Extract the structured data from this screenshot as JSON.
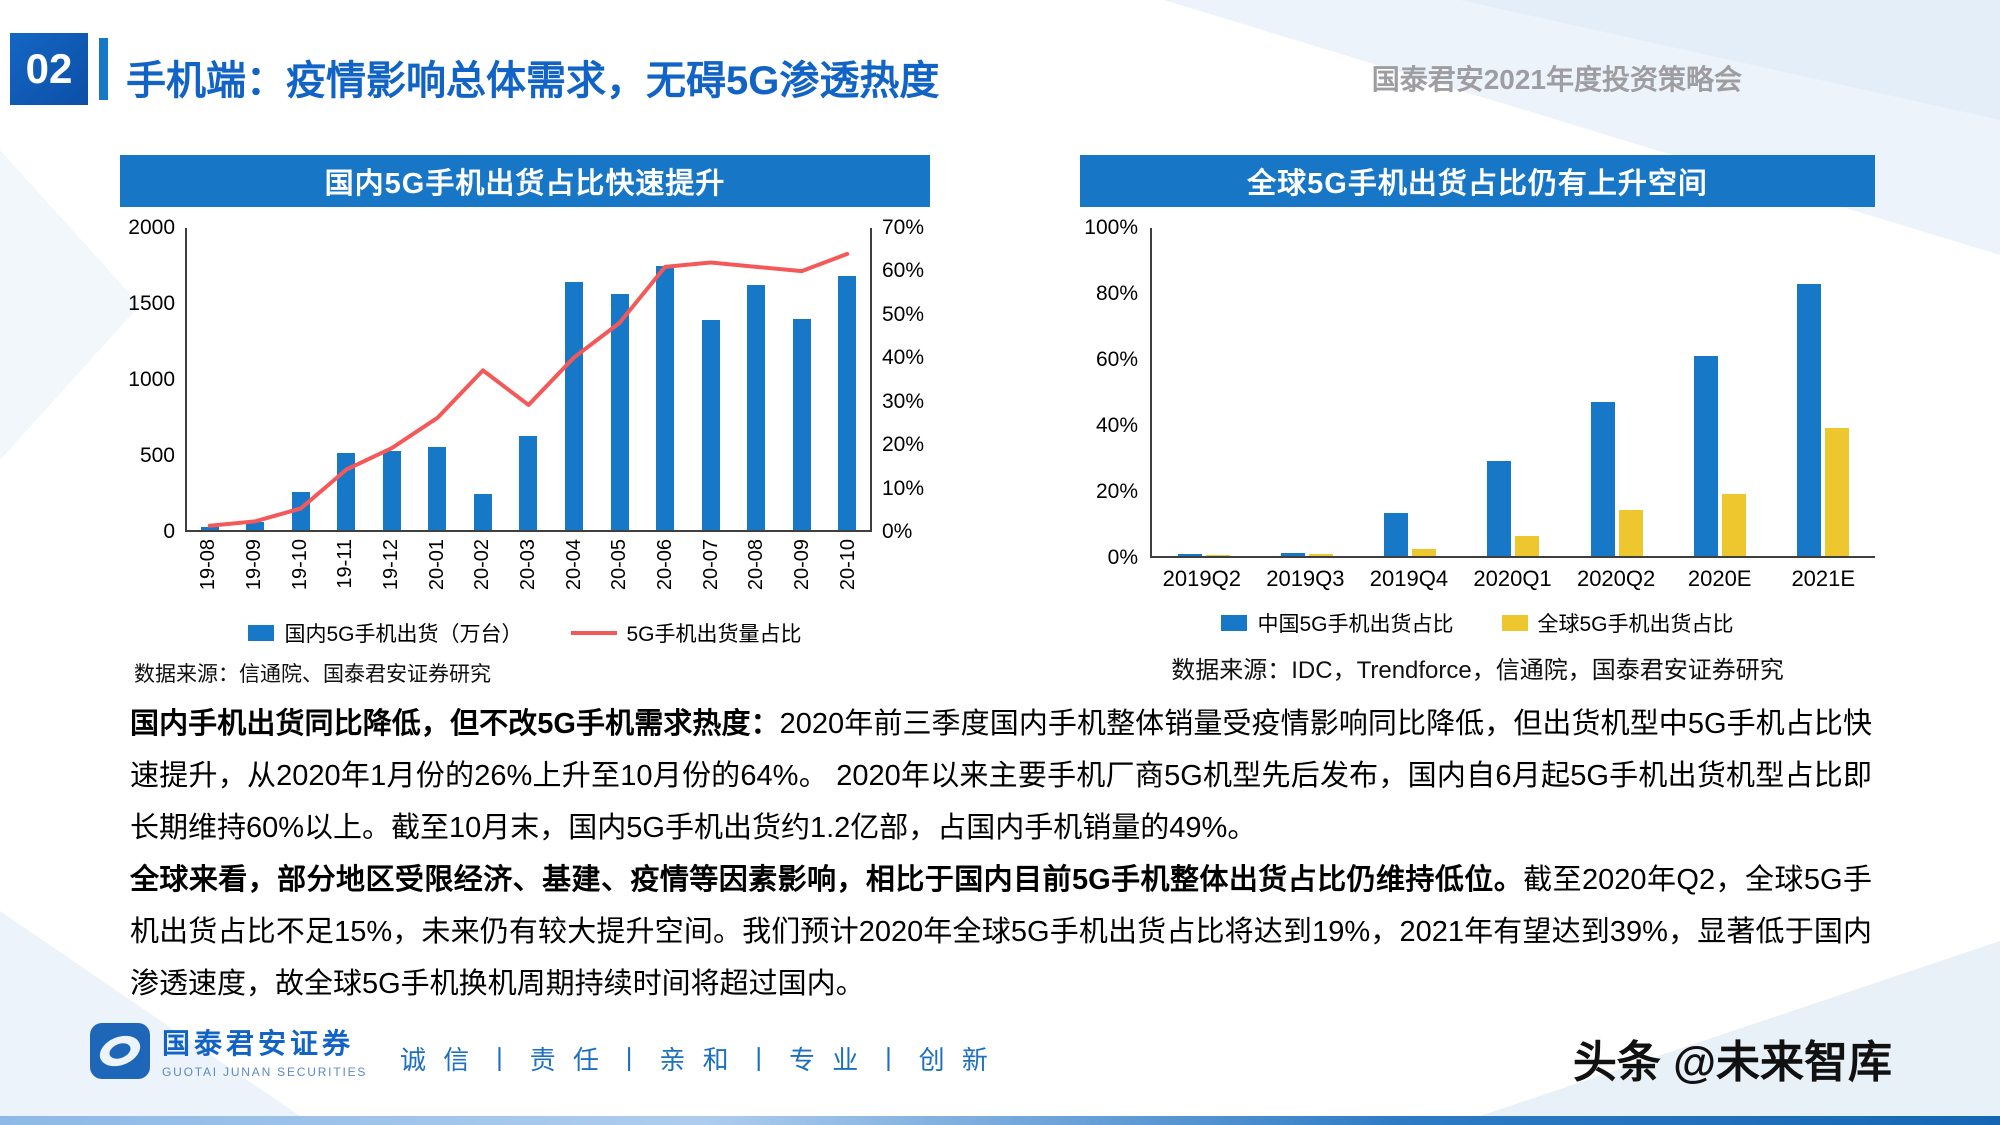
{
  "header": {
    "page_number": "02",
    "title": "手机端：疫情影响总体需求，无碍5G渗透热度",
    "right_label": "国泰君安2021年度投资策略会"
  },
  "chart_data": [
    {
      "type": "bar+line",
      "title": "国内5G手机出货占比快速提升",
      "categories": [
        "19-08",
        "19-09",
        "19-10",
        "19-11",
        "19-12",
        "20-01",
        "20-02",
        "20-03",
        "20-04",
        "20-05",
        "20-06",
        "20-07",
        "20-08",
        "20-09",
        "20-10"
      ],
      "series": [
        {
          "name": "国内5G手机出货（万台）",
          "type": "bar",
          "axis": "left",
          "values": [
            20,
            50,
            250,
            510,
            520,
            550,
            240,
            620,
            1640,
            1560,
            1750,
            1390,
            1620,
            1400,
            1680
          ]
        },
        {
          "name": "5G手机出货量占比",
          "type": "line",
          "axis": "right",
          "values": [
            1,
            2,
            5,
            14,
            19,
            26,
            37,
            29,
            40,
            48,
            61,
            62,
            61,
            60,
            64
          ]
        }
      ],
      "left_axis": {
        "ticks": [
          "2000",
          "1500",
          "1000",
          "500",
          "0"
        ],
        "max": 2000,
        "min": 0
      },
      "right_axis": {
        "ticks": [
          "70%",
          "60%",
          "50%",
          "40%",
          "30%",
          "20%",
          "10%",
          "0%"
        ],
        "max": 70,
        "min": 0
      },
      "grid": "off",
      "legend_position": "bottom",
      "source": "数据来源：信通院、国泰君安证券研究"
    },
    {
      "type": "bar",
      "title": "全球5G手机出货占比仍有上升空间",
      "categories": [
        "2019Q2",
        "2019Q3",
        "2019Q4",
        "2020Q1",
        "2020Q2",
        "2020E",
        "2021E"
      ],
      "series": [
        {
          "name": "中国5G手机出货占比",
          "values": [
            0.5,
            1,
            13,
            29,
            47,
            61,
            83
          ]
        },
        {
          "name": "全球5G手机出货占比",
          "values": [
            0.2,
            0.5,
            2,
            6,
            14,
            19,
            39
          ]
        }
      ],
      "y_axis": {
        "ticks": [
          "100%",
          "80%",
          "60%",
          "40%",
          "20%",
          "0%"
        ],
        "max": 100,
        "min": 0
      },
      "grid": "off",
      "legend_position": "bottom",
      "source": "数据来源：IDC，Trendforce，信通院，国泰君安证券研究"
    }
  ],
  "body": {
    "paragraphs": [
      {
        "bold": "国内手机出货同比降低，但不改5G手机需求热度：",
        "text": "2020年前三季度国内手机整体销量受疫情影响同比降低，但出货机型中5G手机占比快速提升，从2020年1月份的26%上升至10月份的64%。 2020年以来主要手机厂商5G机型先后发布，国内自6月起5G手机出货机型占比即长期维持60%以上。截至10月末，国内5G手机出货约1.2亿部，占国内手机销量的49%。"
      },
      {
        "bold": "全球来看，部分地区受限经济、基建、疫情等因素影响，相比于国内目前5G手机整体出货占比仍维持低位。",
        "text": "截至2020年Q2，全球5G手机出货占比不足15%，未来仍有较大提升空间。我们预计2020年全球5G手机出货占比将达到19%，2021年有望达到39%，显著低于国内渗透速度，故全球5G手机换机周期持续时间将超过国内。"
      }
    ]
  },
  "footer": {
    "logo_cn": "国泰君安证券",
    "logo_en": "GUOTAI JUNAN SECURITIES",
    "motto": "诚 信 丨 责 任 丨 亲 和 丨 专 业 丨 创 新",
    "watermark": "头条 @未来智库"
  },
  "colors": {
    "accent_blue": "#1776c6",
    "bar_blue": "#1878c8",
    "bar_yellow": "#eec62d",
    "line_red": "#f4595a",
    "title_blue": "#1163c6",
    "header_gray": "#9e9ea2"
  }
}
